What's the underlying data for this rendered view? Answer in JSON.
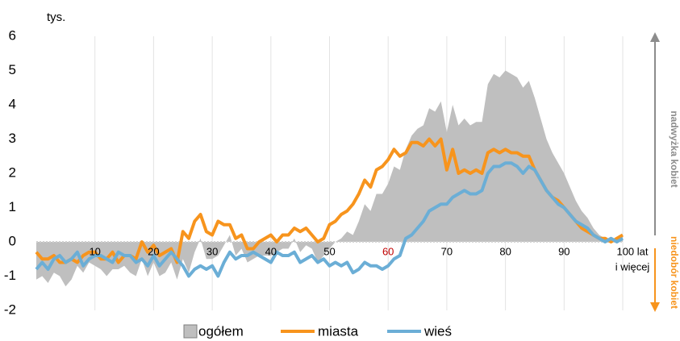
{
  "chart_data": {
    "type": "area-line",
    "y_unit": "tys.",
    "x": [
      0,
      1,
      2,
      3,
      4,
      5,
      6,
      7,
      8,
      9,
      10,
      11,
      12,
      13,
      14,
      15,
      16,
      17,
      18,
      19,
      20,
      21,
      22,
      23,
      24,
      25,
      26,
      27,
      28,
      29,
      30,
      31,
      32,
      33,
      34,
      35,
      36,
      37,
      38,
      39,
      40,
      41,
      42,
      43,
      44,
      45,
      46,
      47,
      48,
      49,
      50,
      51,
      52,
      53,
      54,
      55,
      56,
      57,
      58,
      59,
      60,
      61,
      62,
      63,
      64,
      65,
      66,
      67,
      68,
      69,
      70,
      71,
      72,
      73,
      74,
      75,
      76,
      77,
      78,
      79,
      80,
      81,
      82,
      83,
      84,
      85,
      86,
      87,
      88,
      89,
      90,
      91,
      92,
      93,
      94,
      95,
      96,
      97,
      98,
      99,
      100
    ],
    "series": [
      {
        "name": "ogółem",
        "color": "#bfbfbf",
        "kind": "area",
        "values": [
          -1.1,
          -1.0,
          -1.2,
          -0.9,
          -1.0,
          -1.3,
          -1.1,
          -0.7,
          -0.9,
          -0.6,
          -0.7,
          -0.8,
          -1.0,
          -0.8,
          -0.8,
          -0.7,
          -0.9,
          -1.0,
          -0.5,
          -1.0,
          -0.6,
          -1.0,
          -0.9,
          -0.6,
          -1.1,
          -0.5,
          -0.9,
          -0.3,
          0.1,
          -0.5,
          -0.5,
          -0.4,
          -0.1,
          0.2,
          -0.4,
          -0.2,
          -0.6,
          -0.5,
          -0.4,
          -0.4,
          -0.4,
          -0.3,
          -0.2,
          -0.2,
          0.1,
          -0.3,
          -0.1,
          -0.2,
          -0.6,
          -0.4,
          -0.2,
          0.0,
          0.1,
          0.3,
          0.2,
          0.6,
          1.1,
          0.9,
          1.4,
          1.4,
          1.7,
          2.2,
          2.1,
          2.7,
          3.1,
          3.3,
          3.4,
          3.9,
          3.8,
          4.1,
          3.2,
          4.0,
          3.4,
          3.6,
          3.4,
          3.5,
          3.5,
          4.6,
          4.9,
          4.8,
          5.0,
          4.9,
          4.8,
          4.5,
          4.7,
          4.2,
          3.6,
          3.0,
          2.6,
          2.3,
          2.0,
          1.6,
          1.2,
          0.9,
          0.7,
          0.4,
          0.2,
          0.1,
          0.1,
          0.1,
          0.2
        ]
      },
      {
        "name": "miasta",
        "color": "#f7941d",
        "kind": "line",
        "values": [
          -0.3,
          -0.5,
          -0.5,
          -0.4,
          -0.6,
          -0.6,
          -0.5,
          -0.6,
          -0.4,
          -0.3,
          -0.3,
          -0.5,
          -0.5,
          -0.3,
          -0.6,
          -0.4,
          -0.4,
          -0.5,
          0.0,
          -0.3,
          -0.1,
          -0.4,
          -0.3,
          -0.2,
          -0.6,
          0.3,
          0.1,
          0.6,
          0.8,
          0.3,
          0.2,
          0.6,
          0.5,
          0.5,
          0.1,
          0.2,
          -0.2,
          -0.2,
          0.0,
          0.1,
          0.2,
          0.0,
          0.2,
          0.2,
          0.4,
          0.3,
          0.4,
          0.2,
          0.0,
          0.1,
          0.5,
          0.6,
          0.8,
          0.9,
          1.1,
          1.4,
          1.8,
          1.6,
          2.1,
          2.2,
          2.4,
          2.7,
          2.5,
          2.6,
          2.9,
          2.9,
          2.8,
          3.0,
          2.8,
          3.0,
          2.1,
          2.7,
          2.0,
          2.1,
          2.0,
          2.1,
          2.0,
          2.6,
          2.7,
          2.6,
          2.7,
          2.6,
          2.6,
          2.5,
          2.5,
          2.1,
          1.8,
          1.5,
          1.3,
          1.2,
          1.0,
          0.8,
          0.6,
          0.4,
          0.3,
          0.2,
          0.1,
          0.1,
          0.0,
          0.1,
          0.2
        ]
      },
      {
        "name": "wieś",
        "color": "#6baed6",
        "kind": "line",
        "values": [
          -0.8,
          -0.6,
          -0.8,
          -0.5,
          -0.4,
          -0.6,
          -0.5,
          -0.3,
          -0.7,
          -0.5,
          -0.4,
          -0.4,
          -0.5,
          -0.6,
          -0.3,
          -0.4,
          -0.4,
          -0.6,
          -0.5,
          -0.7,
          -0.4,
          -0.7,
          -0.5,
          -0.3,
          -0.5,
          -0.7,
          -1.0,
          -0.8,
          -0.7,
          -0.8,
          -0.7,
          -1.0,
          -0.6,
          -0.3,
          -0.5,
          -0.4,
          -0.4,
          -0.3,
          -0.4,
          -0.5,
          -0.6,
          -0.3,
          -0.4,
          -0.4,
          -0.3,
          -0.6,
          -0.5,
          -0.4,
          -0.6,
          -0.5,
          -0.7,
          -0.6,
          -0.7,
          -0.6,
          -0.9,
          -0.8,
          -0.6,
          -0.7,
          -0.7,
          -0.8,
          -0.7,
          -0.5,
          -0.4,
          0.1,
          0.2,
          0.4,
          0.6,
          0.9,
          1.0,
          1.1,
          1.1,
          1.3,
          1.4,
          1.5,
          1.4,
          1.4,
          1.5,
          2.0,
          2.2,
          2.2,
          2.3,
          2.3,
          2.2,
          2.0,
          2.2,
          2.1,
          1.8,
          1.5,
          1.3,
          1.1,
          1.0,
          0.8,
          0.6,
          0.5,
          0.4,
          0.2,
          0.1,
          0.0,
          0.1,
          0.0,
          0.1
        ]
      }
    ],
    "xlim": [
      0,
      100
    ],
    "xticks": [
      10,
      20,
      30,
      40,
      50,
      60,
      70,
      80,
      90,
      {
        "value": 100,
        "label": "100 lat"
      }
    ],
    "xticks_colors": [
      "#000000",
      "#000000",
      "#000000",
      "#000000",
      "#000000",
      "#c00000",
      "#000000",
      "#000000",
      "#000000",
      "#000000"
    ],
    "x_last_note": "i więcej",
    "ylim": [
      -2,
      6
    ],
    "yticks": [
      -2,
      -1,
      0,
      1,
      2,
      3,
      4,
      5,
      6
    ],
    "grid": "vertical",
    "legend": "bottom",
    "right_labels": [
      {
        "text": "nadwyżka kobiet",
        "color": "#8c8c8c",
        "direction": "up"
      },
      {
        "text": "niedobór kobiet",
        "color": "#f7941d",
        "direction": "down"
      }
    ]
  }
}
